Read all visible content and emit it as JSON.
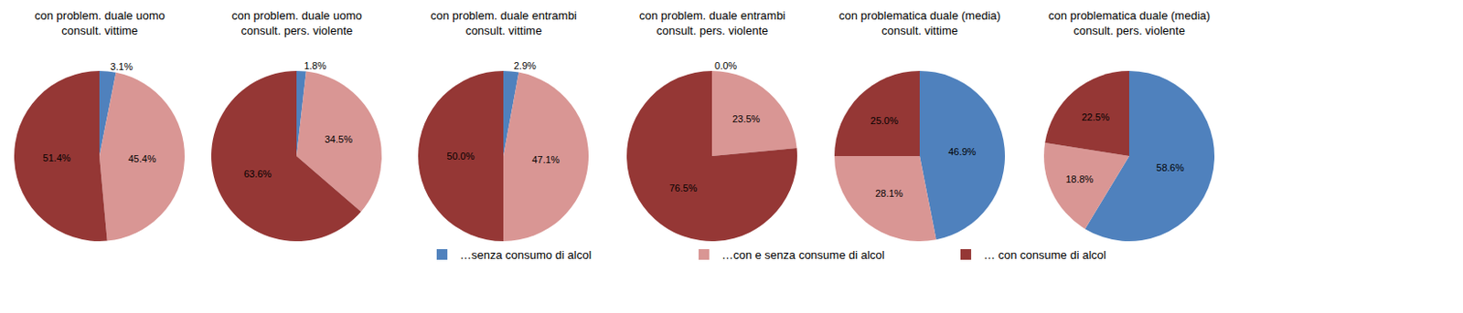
{
  "chart_data": [
    {
      "type": "pie",
      "title": "con problem. duale uomo\nconsult. vittime",
      "categories": [
        "…senza consumo di alcol",
        "…con e senza consume di alcol",
        "… con consume di alcol"
      ],
      "values": [
        3.1,
        45.4,
        51.4
      ],
      "value_labels": [
        "3.1%",
        "45.4%",
        "51.4%"
      ],
      "colors": [
        "#4f81bd",
        "#d99694",
        "#953735"
      ],
      "data_labels": true,
      "legend": "bottom"
    },
    {
      "type": "pie",
      "title": "con problem. duale uomo\nconsult. pers. violente",
      "categories": [
        "…senza consumo di alcol",
        "…con e senza consume di alcol",
        "… con consume di alcol"
      ],
      "values": [
        1.8,
        34.5,
        63.6
      ],
      "value_labels": [
        "1.8%",
        "34.5%",
        "63.6%"
      ],
      "colors": [
        "#4f81bd",
        "#d99694",
        "#953735"
      ],
      "data_labels": true,
      "legend": "bottom"
    },
    {
      "type": "pie",
      "title": "con problem. duale entrambi\nconsult. vittime",
      "categories": [
        "…senza consumo di alcol",
        "…con e senza consume di alcol",
        "… con consume di alcol"
      ],
      "values": [
        2.9,
        47.1,
        50.0
      ],
      "value_labels": [
        "2.9%",
        "47.1%",
        "50.0%"
      ],
      "colors": [
        "#4f81bd",
        "#d99694",
        "#953735"
      ],
      "data_labels": true,
      "legend": "bottom"
    },
    {
      "type": "pie",
      "title": "con problem. duale entrambi\nconsult. pers. violente",
      "categories": [
        "…senza consumo di alcol",
        "…con e senza consume di alcol",
        "… con consume di alcol"
      ],
      "values": [
        0.0,
        23.5,
        76.5
      ],
      "value_labels": [
        "0.0%",
        "23.5%",
        "76.5%"
      ],
      "colors": [
        "#4f81bd",
        "#d99694",
        "#953735"
      ],
      "data_labels": true,
      "legend": "bottom"
    },
    {
      "type": "pie",
      "title": "con problematica duale (media)\nconsult. vittime",
      "categories": [
        "…senza consumo di alcol",
        "…con e senza consume di alcol",
        "… con consume di alcol"
      ],
      "values": [
        46.9,
        28.1,
        25.0
      ],
      "value_labels": [
        "46.9%",
        "28.1%",
        "25.0%"
      ],
      "colors": [
        "#4f81bd",
        "#d99694",
        "#953735"
      ],
      "data_labels": true,
      "legend": "bottom"
    },
    {
      "type": "pie",
      "title": "con problematica duale (media)\nconsult. pers. violente",
      "categories": [
        "…senza consumo di alcol",
        "…con e senza consume di alcol",
        "… con consume di alcol"
      ],
      "values": [
        58.6,
        18.8,
        22.5
      ],
      "value_labels": [
        "58.6%",
        "18.8%",
        "22.5%"
      ],
      "colors": [
        "#4f81bd",
        "#d99694",
        "#953735"
      ],
      "data_labels": true,
      "legend": "bottom"
    }
  ]
}
